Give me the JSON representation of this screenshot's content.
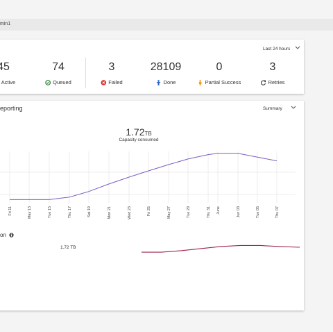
{
  "breadcrumb": "min1",
  "stats": {
    "range": "Last 24 hours",
    "items": [
      {
        "value": "45",
        "label": "Active"
      },
      {
        "value": "74",
        "label": "Queued"
      },
      {
        "value": "3",
        "label": "Failed"
      },
      {
        "value": "28109",
        "label": "Done"
      },
      {
        "value": "0",
        "label": "Partial Success"
      },
      {
        "value": "3",
        "label": "Retries"
      }
    ]
  },
  "reporting": {
    "title": "eporting",
    "view": "Summary",
    "capacity_value": "1.72",
    "capacity_unit": "TB",
    "capacity_caption": "Capacity consumed",
    "chart_data": {
      "type": "line",
      "categories": [
        "Fri 11",
        "May 13",
        "Tue 15",
        "Thu 17",
        "Sat 19",
        "Mon 21",
        "Wed 23",
        "Fri 25",
        "May 27",
        "Tue 29",
        "Thu 31",
        "June",
        "Jun 03",
        "Tue 05",
        "Thu 07"
      ],
      "values": [
        14,
        14,
        14,
        18,
        27,
        39,
        50,
        60,
        70,
        79,
        86,
        88,
        88,
        82,
        76
      ],
      "color": "#7b5cc4",
      "ylim": [
        0,
        100
      ]
    }
  },
  "allocation": {
    "title": "on",
    "value": "1.72 TB",
    "chart_data": {
      "type": "line",
      "values": [
        1.3,
        1.3,
        2.7,
        4.7,
        6.7,
        7.7,
        7.7,
        6.7,
        6
      ],
      "color": "#9b2448",
      "ylim": [
        0,
        10
      ]
    }
  }
}
